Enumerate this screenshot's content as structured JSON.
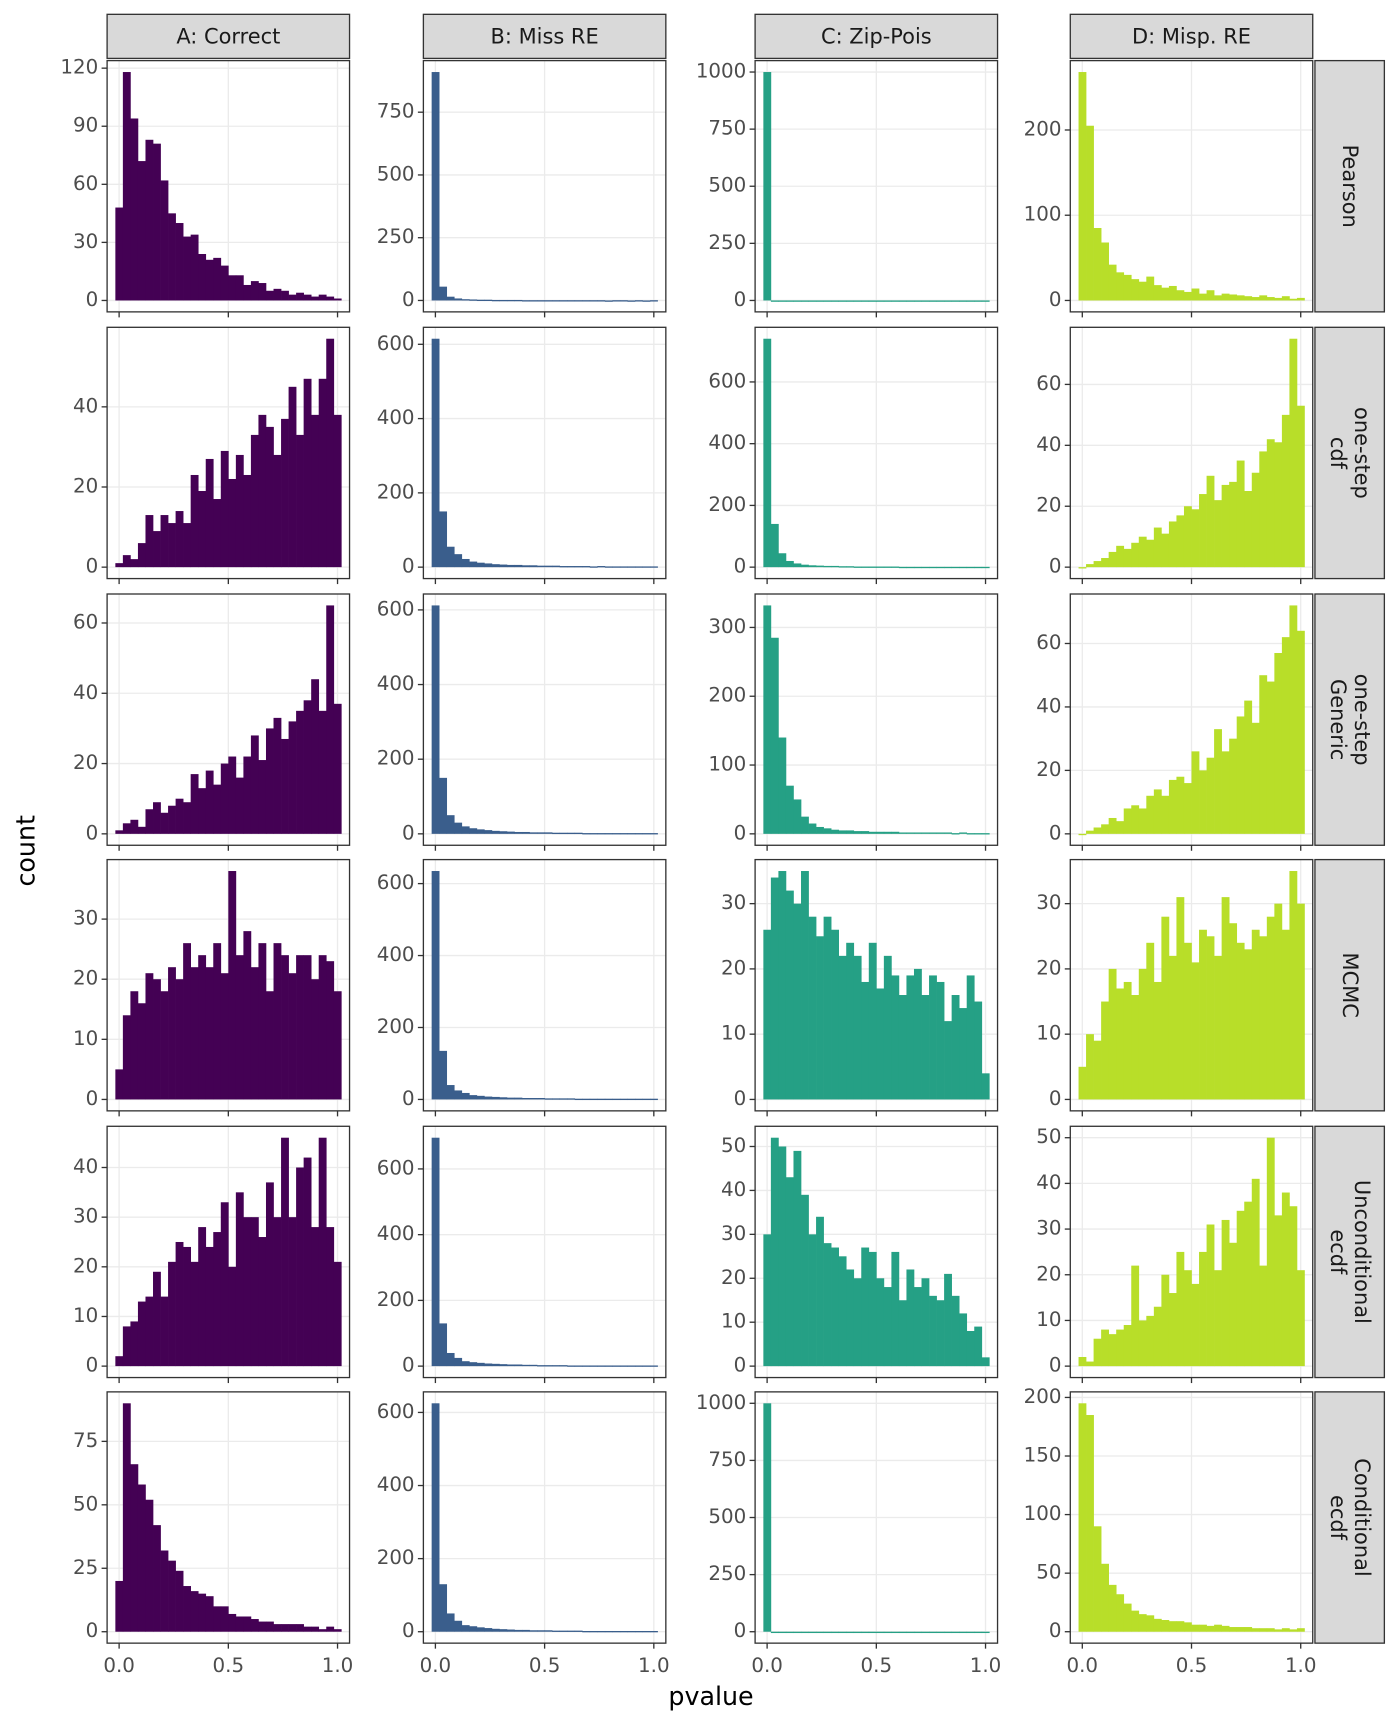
{
  "chart_data": {
    "type": "histogram",
    "x_label": "pvalue",
    "y_label": "count",
    "xlim": [
      -0.055,
      1.055
    ],
    "xticks": [
      {
        "value": 0,
        "label": "0.0"
      },
      {
        "value": 0.5,
        "label": "0.5"
      },
      {
        "value": 1,
        "label": "1.0"
      }
    ],
    "grid": true,
    "bins": [
      -0.0172,
      0.0172,
      0.0517,
      0.0862,
      0.1207,
      0.1552,
      0.1897,
      0.2241,
      0.2586,
      0.2931,
      0.3276,
      0.3621,
      0.3966,
      0.431,
      0.4655,
      0.5,
      0.5345,
      0.569,
      0.6034,
      0.6379,
      0.6724,
      0.7069,
      0.7414,
      0.7759,
      0.8103,
      0.8448,
      0.8793,
      0.9138,
      0.9483,
      0.9828,
      1.0172
    ],
    "columns": [
      {
        "name": "A: Correct",
        "color": "#440154"
      },
      {
        "name": "B: Miss RE",
        "color": "#3a5e8c"
      },
      {
        "name": "C: Zip-Pois",
        "color": "#25a085"
      },
      {
        "name": "D: Misp. RE",
        "color": "#b8de29"
      }
    ],
    "rows": [
      [
        "Pearson"
      ],
      [
        "one-step",
        "cdf"
      ],
      [
        "one-step",
        "Generic"
      ],
      [
        "MCMC"
      ],
      [
        "Unconditional",
        "ecdf"
      ],
      [
        "Conditional",
        "ecdf"
      ]
    ],
    "panels": [
      [
        {
          "values": [
            48,
            118,
            94,
            72,
            83,
            81,
            62,
            45,
            40,
            33,
            34,
            24,
            21,
            22,
            18,
            13,
            13,
            8,
            10,
            9,
            5,
            6,
            5,
            3,
            4,
            3,
            2,
            3,
            2,
            1
          ],
          "ylim": [
            -5.9,
            123.9
          ],
          "yticks": [
            0,
            30,
            60,
            90,
            120
          ]
        },
        {
          "values": [
            910,
            55,
            15,
            8,
            5,
            4,
            3,
            3,
            2,
            2,
            2,
            2,
            1,
            1,
            1,
            1,
            1,
            1,
            1,
            1,
            1,
            1,
            1,
            0,
            1,
            1,
            0,
            1,
            0,
            1
          ],
          "ylim": [
            -45.5,
            955.5
          ],
          "yticks": [
            0,
            250,
            500,
            750
          ]
        },
        {
          "values": [
            1000,
            0,
            0,
            0,
            0,
            0,
            0,
            0,
            0,
            0,
            0,
            0,
            0,
            0,
            0,
            0,
            0,
            0,
            0,
            0,
            0,
            0,
            0,
            0,
            0,
            0,
            0,
            0,
            0,
            0
          ],
          "ylim": [
            -50,
            1050
          ],
          "yticks": [
            0,
            250,
            500,
            750,
            1000
          ]
        },
        {
          "values": [
            268,
            205,
            85,
            68,
            42,
            33,
            30,
            25,
            22,
            28,
            18,
            15,
            17,
            12,
            10,
            14,
            8,
            12,
            6,
            8,
            7,
            6,
            5,
            4,
            6,
            4,
            3,
            5,
            2,
            3
          ],
          "ylim": [
            -13.4,
            281.4
          ],
          "yticks": [
            0,
            100,
            200
          ]
        }
      ],
      [
        {
          "values": [
            1,
            3,
            2,
            6,
            13,
            9,
            13,
            11,
            14,
            11,
            23,
            19,
            27,
            17,
            29,
            22,
            28,
            23,
            33,
            38,
            35,
            28,
            37,
            45,
            33,
            47,
            38,
            47,
            57,
            38
          ],
          "ylim": [
            -2.85,
            59.85
          ],
          "yticks": [
            0,
            20,
            40
          ]
        },
        {
          "values": [
            615,
            150,
            55,
            35,
            22,
            15,
            12,
            10,
            8,
            7,
            6,
            6,
            5,
            5,
            4,
            4,
            4,
            3,
            3,
            3,
            3,
            2,
            3,
            2,
            2,
            2,
            2,
            2,
            2,
            2
          ],
          "ylim": [
            -30.75,
            645.75
          ],
          "yticks": [
            0,
            200,
            400,
            600
          ]
        },
        {
          "values": [
            740,
            140,
            45,
            20,
            12,
            8,
            6,
            5,
            4,
            4,
            3,
            3,
            2,
            2,
            2,
            2,
            2,
            2,
            1,
            1,
            1,
            1,
            1,
            1,
            1,
            1,
            1,
            1,
            1,
            1
          ],
          "ylim": [
            -37,
            777
          ],
          "yticks": [
            0,
            200,
            400,
            600
          ]
        },
        {
          "values": [
            0,
            1,
            2,
            3,
            5,
            7,
            6,
            8,
            10,
            9,
            13,
            11,
            15,
            17,
            20,
            19,
            24,
            30,
            22,
            27,
            28,
            35,
            25,
            31,
            38,
            42,
            41,
            50,
            75,
            53
          ],
          "ylim": [
            -3.75,
            78.75
          ],
          "yticks": [
            0,
            20,
            40,
            60
          ]
        }
      ],
      [
        {
          "values": [
            1,
            3,
            4,
            2,
            7,
            9,
            6,
            8,
            10,
            9,
            17,
            13,
            18,
            14,
            20,
            22,
            16,
            22,
            28,
            21,
            30,
            33,
            27,
            32,
            35,
            38,
            44,
            35,
            65,
            37
          ],
          "ylim": [
            -3.25,
            68.25
          ],
          "yticks": [
            0,
            20,
            40,
            60
          ]
        },
        {
          "values": [
            612,
            150,
            50,
            30,
            20,
            15,
            12,
            10,
            8,
            7,
            6,
            5,
            5,
            4,
            4,
            4,
            3,
            3,
            3,
            3,
            2,
            2,
            2,
            2,
            2,
            2,
            2,
            2,
            2,
            2
          ],
          "ylim": [
            -30.6,
            642.6
          ],
          "yticks": [
            0,
            200,
            400,
            600
          ]
        },
        {
          "values": [
            332,
            285,
            140,
            70,
            50,
            25,
            15,
            10,
            8,
            6,
            5,
            5,
            4,
            4,
            3,
            3,
            3,
            3,
            2,
            2,
            2,
            2,
            2,
            2,
            2,
            1,
            2,
            1,
            1,
            1
          ],
          "ylim": [
            -16.6,
            348.6
          ],
          "yticks": [
            0,
            100,
            200,
            300
          ]
        },
        {
          "values": [
            0,
            1,
            2,
            3,
            5,
            4,
            8,
            9,
            8,
            12,
            14,
            12,
            17,
            18,
            16,
            26,
            20,
            24,
            33,
            26,
            30,
            37,
            42,
            35,
            50,
            48,
            57,
            62,
            72,
            64
          ],
          "ylim": [
            -3.6,
            75.6
          ],
          "yticks": [
            0,
            20,
            40,
            60
          ]
        }
      ],
      [
        {
          "values": [
            5,
            14,
            18,
            16,
            21,
            20,
            18,
            22,
            20,
            26,
            22,
            24,
            22,
            26,
            21,
            38,
            24,
            28,
            22,
            26,
            18,
            26,
            24,
            21,
            24,
            24,
            20,
            24,
            23,
            18
          ],
          "ylim": [
            -1.9,
            39.9
          ],
          "yticks": [
            0,
            10,
            20,
            30
          ]
        },
        {
          "values": [
            635,
            135,
            40,
            25,
            18,
            12,
            10,
            8,
            7,
            6,
            5,
            5,
            4,
            4,
            4,
            3,
            3,
            3,
            3,
            2,
            2,
            2,
            2,
            2,
            2,
            2,
            2,
            2,
            2,
            2
          ],
          "ylim": [
            -31.75,
            666.75
          ],
          "yticks": [
            0,
            200,
            400,
            600
          ]
        },
        {
          "values": [
            26,
            34,
            35,
            32,
            30,
            35,
            28,
            25,
            28,
            26,
            22,
            24,
            22,
            18,
            24,
            17,
            22,
            19,
            16,
            19,
            20,
            16,
            19,
            18,
            12,
            16,
            14,
            19,
            15,
            4
          ],
          "ylim": [
            -1.75,
            36.75
          ],
          "yticks": [
            0,
            10,
            20,
            30
          ]
        },
        {
          "values": [
            5,
            10,
            9,
            15,
            20,
            17,
            18,
            16,
            20,
            24,
            18,
            28,
            22,
            31,
            24,
            21,
            26,
            25,
            22,
            31,
            27,
            24,
            23,
            26,
            25,
            28,
            30,
            26,
            35,
            30
          ],
          "ylim": [
            -1.75,
            36.75
          ],
          "yticks": [
            0,
            10,
            20,
            30
          ]
        }
      ],
      [
        {
          "values": [
            2,
            8,
            9,
            13,
            14,
            19,
            14,
            21,
            25,
            24,
            21,
            28,
            24,
            27,
            33,
            20,
            35,
            30,
            30,
            26,
            37,
            30,
            46,
            30,
            40,
            42,
            28,
            46,
            28,
            21
          ],
          "ylim": [
            -2.3,
            48.3
          ],
          "yticks": [
            0,
            10,
            20,
            30,
            40
          ]
        },
        {
          "values": [
            695,
            130,
            40,
            25,
            15,
            12,
            10,
            8,
            7,
            6,
            5,
            5,
            4,
            4,
            3,
            3,
            3,
            3,
            2,
            2,
            2,
            2,
            2,
            2,
            2,
            2,
            2,
            2,
            2,
            2
          ],
          "ylim": [
            -34.75,
            729.75
          ],
          "yticks": [
            0,
            200,
            400,
            600
          ]
        },
        {
          "values": [
            30,
            52,
            50,
            43,
            49,
            39,
            30,
            34,
            28,
            27,
            25,
            22,
            20,
            27,
            26,
            20,
            18,
            26,
            15,
            22,
            18,
            20,
            16,
            15,
            21,
            16,
            12,
            8,
            9,
            2
          ],
          "ylim": [
            -2.6,
            54.6
          ],
          "yticks": [
            0,
            10,
            20,
            30,
            40,
            50
          ]
        },
        {
          "values": [
            2,
            1,
            6,
            8,
            7,
            8,
            9,
            22,
            10,
            11,
            13,
            20,
            16,
            25,
            21,
            18,
            25,
            31,
            21,
            32,
            27,
            34,
            36,
            41,
            22,
            50,
            33,
            38,
            35,
            21
          ],
          "ylim": [
            -2.5,
            52.5
          ],
          "yticks": [
            0,
            10,
            20,
            30,
            40,
            50
          ]
        }
      ],
      [
        {
          "values": [
            20,
            90,
            66,
            58,
            52,
            42,
            32,
            28,
            24,
            18,
            16,
            15,
            14,
            10,
            10,
            7,
            6,
            6,
            5,
            4,
            4,
            3,
            3,
            3,
            3,
            2,
            2,
            1,
            2,
            1
          ],
          "ylim": [
            -4.5,
            94.5
          ],
          "yticks": [
            0,
            25,
            50,
            75
          ]
        },
        {
          "values": [
            625,
            130,
            50,
            30,
            18,
            15,
            12,
            10,
            8,
            7,
            6,
            5,
            5,
            4,
            4,
            4,
            3,
            3,
            3,
            3,
            2,
            2,
            2,
            2,
            2,
            2,
            2,
            2,
            2,
            2
          ],
          "ylim": [
            -31.25,
            656.25
          ],
          "yticks": [
            0,
            200,
            400,
            600
          ]
        },
        {
          "values": [
            1000,
            0,
            0,
            0,
            0,
            0,
            0,
            0,
            0,
            0,
            0,
            0,
            0,
            0,
            0,
            0,
            0,
            0,
            0,
            0,
            0,
            0,
            0,
            0,
            0,
            0,
            0,
            0,
            0,
            0
          ],
          "ylim": [
            -50,
            1050
          ],
          "yticks": [
            0,
            250,
            500,
            750,
            1000
          ]
        },
        {
          "values": [
            195,
            185,
            90,
            58,
            40,
            32,
            24,
            18,
            15,
            14,
            11,
            10,
            9,
            9,
            8,
            6,
            6,
            5,
            6,
            5,
            4,
            4,
            4,
            3,
            3,
            3,
            2,
            3,
            2,
            3
          ],
          "ylim": [
            -9.75,
            204.75
          ],
          "yticks": [
            0,
            50,
            100,
            150,
            200
          ]
        }
      ]
    ]
  }
}
